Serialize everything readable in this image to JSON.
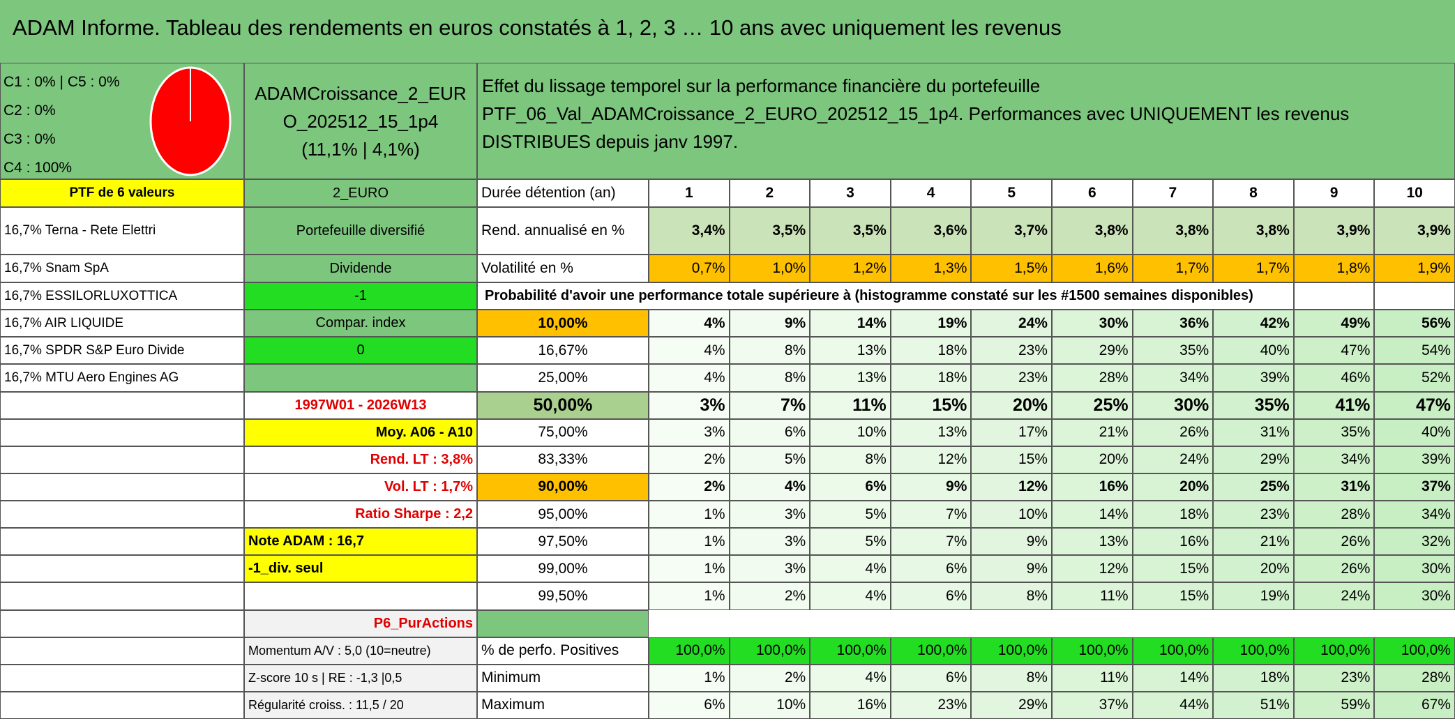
{
  "title": "ADAM Informe. Tableau des rendements en euros constatés à 1, 2, 3 … 10 ans avec uniquement les revenus",
  "allocation": [
    "C1 : 0% | C5 : 0%",
    "C2 : 0%",
    "C3 : 0%",
    "C4 : 100%"
  ],
  "portfolio": {
    "name": "ADAMCroissance_2_EURO_202512_15_1p4",
    "stats": "(11,1% | 4,1%)"
  },
  "description": [
    "Effet du lissage temporel sur la performance financière du portefeuille",
    "PTF_06_Val_ADAMCroissance_2_EURO_202512_15_1p4. Performances avec UNIQUEMENT les revenus DISTRIBUES depuis janv 1997."
  ],
  "rows": [
    {
      "a": "PTF de 6 valeurs",
      "b": "2_EURO",
      "c": "Durée détention (an)",
      "values": [
        1,
        2,
        3,
        4,
        5,
        6,
        7,
        8,
        9,
        10
      ]
    },
    {
      "a": "16,7% Terna - Rete Elettri",
      "b": "Portefeuille diversifié",
      "c": "Rend. annualisé en %",
      "values": [
        "3,4%",
        "3,5%",
        "3,5%",
        "3,6%",
        "3,7%",
        "3,8%",
        "3,8%",
        "3,8%",
        "3,9%",
        "3,9%"
      ]
    },
    {
      "a": "16,7% Snam SpA",
      "b": "Dividende",
      "c": "Volatilité en %",
      "values": [
        "0,7%",
        "1,0%",
        "1,2%",
        "1,3%",
        "1,5%",
        "1,6%",
        "1,7%",
        "1,7%",
        "1,8%",
        "1,9%"
      ]
    },
    {
      "a": "16,7% ESSILORLUXOTTICA",
      "b": "-1",
      "c": "Probabilité d'avoir une performance totale supérieure à (histogramme constaté sur les #1500 semaines disponibles)"
    },
    {
      "a": "16,7% AIR LIQUIDE",
      "b": "Compar. index",
      "c": "10,00%",
      "values": [
        "4%",
        "9%",
        "14%",
        "19%",
        "24%",
        "30%",
        "36%",
        "42%",
        "49%",
        "56%"
      ]
    },
    {
      "a": "16,7% SPDR S&P Euro Divide",
      "b": "0",
      "c": "16,67%",
      "values": [
        "4%",
        "8%",
        "13%",
        "18%",
        "23%",
        "29%",
        "35%",
        "40%",
        "47%",
        "54%"
      ]
    },
    {
      "a": "16,7% MTU Aero Engines AG",
      "c": "25,00%",
      "values": [
        "4%",
        "8%",
        "13%",
        "18%",
        "23%",
        "28%",
        "34%",
        "39%",
        "46%",
        "52%"
      ]
    },
    {
      "b": "1997W01 - 2026W13",
      "c": "50,00%",
      "values": [
        "3%",
        "7%",
        "11%",
        "15%",
        "20%",
        "25%",
        "30%",
        "35%",
        "41%",
        "47%"
      ]
    },
    {
      "b": "Moy. A06 - A10",
      "c": "75,00%",
      "values": [
        "3%",
        "6%",
        "10%",
        "13%",
        "17%",
        "21%",
        "26%",
        "31%",
        "35%",
        "40%"
      ]
    },
    {
      "b": "Rend. LT : 3,8%",
      "c": "83,33%",
      "values": [
        "2%",
        "5%",
        "8%",
        "12%",
        "15%",
        "20%",
        "24%",
        "29%",
        "34%",
        "39%"
      ]
    },
    {
      "b": "Vol. LT : 1,7%",
      "c": "90,00%",
      "values": [
        "2%",
        "4%",
        "6%",
        "9%",
        "12%",
        "16%",
        "20%",
        "25%",
        "31%",
        "37%"
      ]
    },
    {
      "b": "Ratio Sharpe : 2,2",
      "c": "95,00%",
      "values": [
        "1%",
        "3%",
        "5%",
        "7%",
        "10%",
        "14%",
        "18%",
        "23%",
        "28%",
        "34%"
      ]
    },
    {
      "b": "Note ADAM : 16,7",
      "c": "97,50%",
      "values": [
        "1%",
        "3%",
        "5%",
        "7%",
        "9%",
        "13%",
        "16%",
        "21%",
        "26%",
        "32%"
      ]
    },
    {
      "b": "-1_div. seul",
      "c": "99,00%",
      "values": [
        "1%",
        "3%",
        "4%",
        "6%",
        "9%",
        "12%",
        "15%",
        "20%",
        "26%",
        "30%"
      ]
    },
    {
      "c": "99,50%",
      "values": [
        "1%",
        "2%",
        "4%",
        "6%",
        "8%",
        "11%",
        "15%",
        "19%",
        "24%",
        "30%"
      ]
    },
    {
      "b": "P6_PurActions"
    },
    {
      "b": "Momentum A/V : 5,0 (10=neutre)",
      "c": "% de perfo. Positives",
      "values": [
        "100,0%",
        "100,0%",
        "100,0%",
        "100,0%",
        "100,0%",
        "100,0%",
        "100,0%",
        "100,0%",
        "100,0%",
        "100,0%"
      ]
    },
    {
      "b": "Z-score 10 s | RE : -1,3 |0,5",
      "c": "Minimum",
      "values": [
        "1%",
        "2%",
        "4%",
        "6%",
        "8%",
        "11%",
        "14%",
        "18%",
        "23%",
        "28%"
      ]
    },
    {
      "b": "Régularité croiss. : 11,5 / 20",
      "c": "Maximum",
      "values": [
        "6%",
        "10%",
        "16%",
        "23%",
        "29%",
        "37%",
        "44%",
        "51%",
        "59%",
        "67%"
      ]
    }
  ]
}
